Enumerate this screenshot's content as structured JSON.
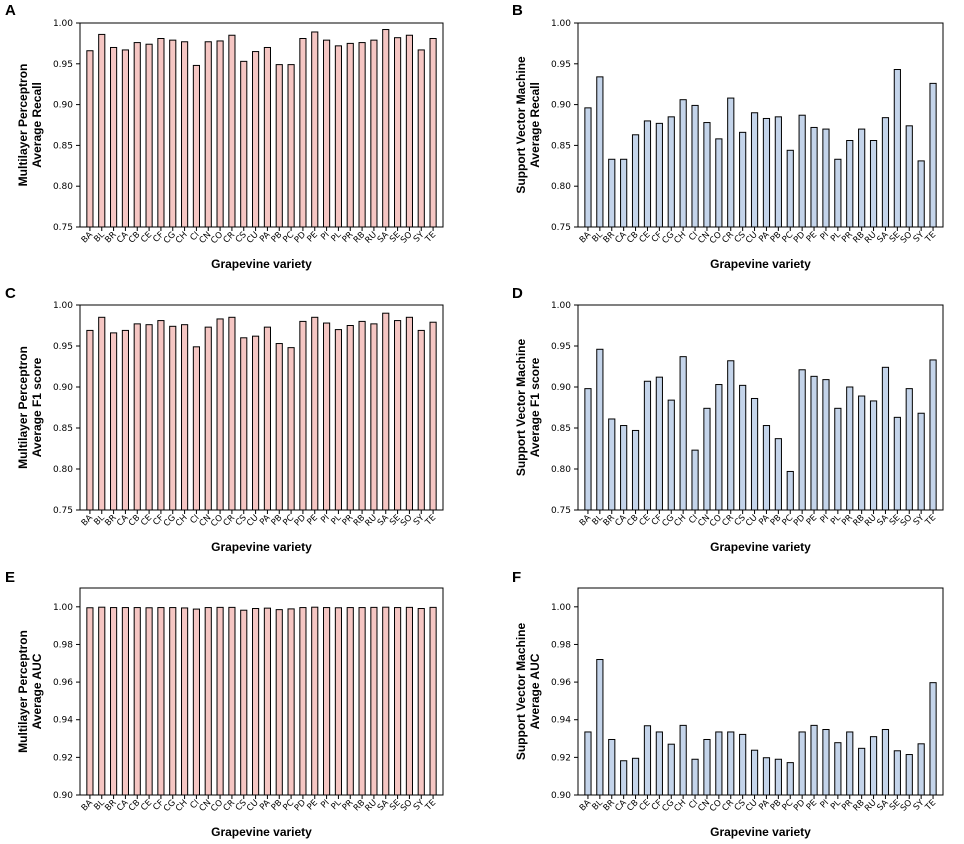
{
  "figure": {
    "bar_colors": {
      "mlp": "#f5c6c3",
      "svm": "#c4d4ea"
    }
  },
  "chart_data": [
    {
      "id": "A",
      "panel_label": "A",
      "type": "bar",
      "color_key": "mlp",
      "ylabel_line1": "Multilayer Perceptron",
      "ylabel_line2": "Average Recall",
      "xlabel": "Grapevine variety",
      "ylim": [
        0.75,
        1.0
      ],
      "yticks": [
        "0.75",
        "0.80",
        "0.85",
        "0.90",
        "0.95",
        "1.00"
      ],
      "categories": [
        "BA",
        "BL",
        "BR",
        "CA",
        "CB",
        "CE",
        "CF",
        "CG",
        "CH",
        "CI",
        "CN",
        "CO",
        "CR",
        "CS",
        "CU",
        "PA",
        "PB",
        "PC",
        "PD",
        "PE",
        "PI",
        "PL",
        "PR",
        "RB",
        "RU",
        "SA",
        "SE",
        "SO",
        "SY",
        "TE"
      ],
      "values": [
        0.966,
        0.986,
        0.97,
        0.967,
        0.976,
        0.974,
        0.981,
        0.979,
        0.977,
        0.948,
        0.977,
        0.978,
        0.985,
        0.953,
        0.965,
        0.97,
        0.949,
        0.949,
        0.981,
        0.989,
        0.979,
        0.972,
        0.975,
        0.976,
        0.979,
        0.992,
        0.982,
        0.985,
        0.967,
        0.981
      ]
    },
    {
      "id": "B",
      "panel_label": "B",
      "type": "bar",
      "color_key": "svm",
      "ylabel_line1": "Support Vector Machine",
      "ylabel_line2": "Average Recall",
      "xlabel": "Grapevine variety",
      "ylim": [
        0.75,
        1.0
      ],
      "yticks": [
        "0.75",
        "0.80",
        "0.85",
        "0.90",
        "0.95",
        "1.00"
      ],
      "categories": [
        "BA",
        "BL",
        "BR",
        "CA",
        "CB",
        "CE",
        "CF",
        "CG",
        "CH",
        "CI",
        "CN",
        "CO",
        "CR",
        "CS",
        "CU",
        "PA",
        "PB",
        "PC",
        "PD",
        "PE",
        "PI",
        "PL",
        "PR",
        "RB",
        "RU",
        "SA",
        "SE",
        "SO",
        "SY",
        "TE"
      ],
      "values": [
        0.896,
        0.934,
        0.833,
        0.833,
        0.863,
        0.88,
        0.877,
        0.885,
        0.906,
        0.899,
        0.878,
        0.858,
        0.908,
        0.866,
        0.89,
        0.883,
        0.885,
        0.844,
        0.887,
        0.872,
        0.87,
        0.833,
        0.856,
        0.87,
        0.856,
        0.884,
        0.943,
        0.874,
        0.831,
        0.926
      ]
    },
    {
      "id": "C",
      "panel_label": "C",
      "type": "bar",
      "color_key": "mlp",
      "ylabel_line1": "Multilayer Perceptron",
      "ylabel_line2": "Average F1 score",
      "xlabel": "Grapevine variety",
      "ylim": [
        0.75,
        1.0
      ],
      "yticks": [
        "0.75",
        "0.80",
        "0.85",
        "0.90",
        "0.95",
        "1.00"
      ],
      "categories": [
        "BA",
        "BL",
        "BR",
        "CA",
        "CB",
        "CE",
        "CF",
        "CG",
        "CH",
        "CI",
        "CN",
        "CO",
        "CR",
        "CS",
        "CU",
        "PA",
        "PB",
        "PC",
        "PD",
        "PE",
        "PI",
        "PL",
        "PR",
        "RB",
        "RU",
        "SA",
        "SE",
        "SO",
        "SY",
        "TE"
      ],
      "values": [
        0.969,
        0.985,
        0.966,
        0.969,
        0.977,
        0.976,
        0.981,
        0.974,
        0.976,
        0.949,
        0.973,
        0.983,
        0.985,
        0.96,
        0.962,
        0.973,
        0.953,
        0.948,
        0.98,
        0.985,
        0.978,
        0.97,
        0.975,
        0.98,
        0.977,
        0.99,
        0.981,
        0.985,
        0.969,
        0.979
      ]
    },
    {
      "id": "D",
      "panel_label": "D",
      "type": "bar",
      "color_key": "svm",
      "ylabel_line1": "Support Vector Machine",
      "ylabel_line2": "Average F1 score",
      "xlabel": "Grapevine variety",
      "ylim": [
        0.75,
        1.0
      ],
      "yticks": [
        "0.75",
        "0.80",
        "0.85",
        "0.90",
        "0.95",
        "1.00"
      ],
      "categories": [
        "BA",
        "BL",
        "BR",
        "CA",
        "CB",
        "CE",
        "CF",
        "CG",
        "CH",
        "CI",
        "CN",
        "CO",
        "CR",
        "CS",
        "CU",
        "PA",
        "PB",
        "PC",
        "PD",
        "PE",
        "PI",
        "PL",
        "PR",
        "RB",
        "RU",
        "SA",
        "SE",
        "SO",
        "SY",
        "TE"
      ],
      "values": [
        0.898,
        0.946,
        0.861,
        0.853,
        0.847,
        0.907,
        0.912,
        0.884,
        0.937,
        0.823,
        0.874,
        0.903,
        0.932,
        0.902,
        0.886,
        0.853,
        0.837,
        0.797,
        0.921,
        0.913,
        0.909,
        0.874,
        0.9,
        0.889,
        0.883,
        0.924,
        0.863,
        0.898,
        0.868,
        0.933
      ]
    },
    {
      "id": "E",
      "panel_label": "E",
      "type": "bar",
      "color_key": "mlp",
      "ylabel_line1": "Multilayer Perceptron",
      "ylabel_line2": "Average AUC",
      "xlabel": "Grapevine variety",
      "ylim": [
        0.9,
        1.01
      ],
      "yticks": [
        "0.90",
        "0.92",
        "0.94",
        "0.96",
        "0.98",
        "1.00"
      ],
      "categories": [
        "BA",
        "BL",
        "BR",
        "CA",
        "CB",
        "CE",
        "CF",
        "CG",
        "CH",
        "CI",
        "CN",
        "CO",
        "CR",
        "CS",
        "CU",
        "PA",
        "PB",
        "PC",
        "PD",
        "PE",
        "PI",
        "PL",
        "PR",
        "RB",
        "RU",
        "SA",
        "SE",
        "SO",
        "SY",
        "TE"
      ],
      "values": [
        0.9995,
        0.9998,
        0.9996,
        0.9996,
        0.9996,
        0.9995,
        0.9996,
        0.9996,
        0.9994,
        0.9988,
        0.9996,
        0.9997,
        0.9997,
        0.9982,
        0.9991,
        0.9993,
        0.9985,
        0.9989,
        0.9996,
        0.9998,
        0.9996,
        0.9995,
        0.9996,
        0.9996,
        0.9997,
        0.9998,
        0.9996,
        0.9997,
        0.9991,
        0.9997
      ]
    },
    {
      "id": "F",
      "panel_label": "F",
      "type": "bar",
      "color_key": "svm",
      "ylabel_line1": "Support Vector Machine",
      "ylabel_line2": "Average AUC",
      "xlabel": "Grapevine variety",
      "ylim": [
        0.9,
        1.01
      ],
      "yticks": [
        "0.90",
        "0.92",
        "0.94",
        "0.96",
        "0.98",
        "1.00"
      ],
      "categories": [
        "BA",
        "BL",
        "BR",
        "CA",
        "CB",
        "CE",
        "CF",
        "CG",
        "CH",
        "CI",
        "CN",
        "CO",
        "CR",
        "CS",
        "CU",
        "PA",
        "PB",
        "PC",
        "PD",
        "PE",
        "PI",
        "PL",
        "PR",
        "RB",
        "RU",
        "SA",
        "SE",
        "SO",
        "SY",
        "TE"
      ],
      "values": [
        0.9335,
        0.972,
        0.9295,
        0.9182,
        0.9195,
        0.9368,
        0.9335,
        0.927,
        0.937,
        0.919,
        0.9295,
        0.9335,
        0.9335,
        0.9322,
        0.9238,
        0.9198,
        0.919,
        0.9172,
        0.9335,
        0.937,
        0.9348,
        0.9278,
        0.9335,
        0.9248,
        0.931,
        0.9348,
        0.9235,
        0.9215,
        0.9272,
        0.9597
      ]
    }
  ]
}
